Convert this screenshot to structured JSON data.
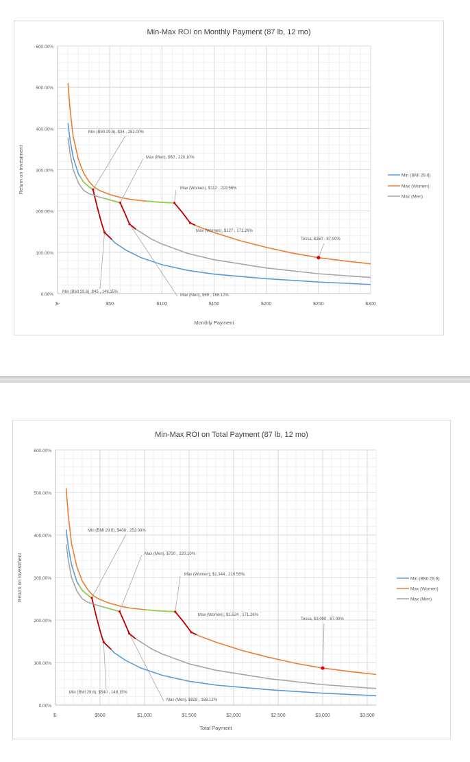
{
  "chart_data": [
    {
      "type": "line",
      "title": "Min-Max ROI on Monthly Payment (87 lb, 12 mo)",
      "xlabel": "Monthly Payment",
      "ylabel": "Return on Investment",
      "xlim": [
        0,
        300
      ],
      "ylim": [
        0,
        600
      ],
      "grid": true,
      "legend_position": "right",
      "x_ticks": [
        0,
        50,
        100,
        150,
        200,
        250,
        300
      ],
      "x_tick_labels": [
        "$-",
        "$50",
        "$100",
        "$150",
        "$200",
        "$250",
        "$300"
      ],
      "y_ticks": [
        0,
        100,
        200,
        300,
        400,
        500,
        600
      ],
      "y_tick_labels": [
        "0.00%",
        "100.00%",
        "200.00%",
        "300.00%",
        "400.00%",
        "500.00%",
        "600.00%"
      ],
      "series": [
        {
          "name": "Min (BMI 29.6)",
          "color": "#5b9bd5",
          "x": [
            10,
            12,
            15,
            20,
            25,
            30,
            34,
            38,
            42,
            45,
            50,
            55,
            65,
            80,
            100,
            125,
            150,
            200,
            250,
            300
          ],
          "y": [
            413,
            372,
            330,
            290,
            270,
            259,
            252,
            210,
            172,
            148.15,
            136,
            123,
            106,
            87,
            70,
            56,
            47,
            36,
            28,
            22
          ],
          "green_range": [
            22,
            34
          ],
          "red_range": [
            34,
            52
          ]
        },
        {
          "name": "Max (Women)",
          "color": "#ed7d31",
          "x": [
            10,
            12,
            15,
            20,
            25,
            30,
            35,
            40,
            50,
            60,
            70,
            85,
            100,
            112,
            120,
            127,
            135,
            150,
            175,
            200,
            225,
            250,
            275,
            300
          ],
          "y": [
            510,
            445,
            380,
            325,
            292,
            272,
            258,
            250,
            240,
            233,
            228,
            224,
            221,
            219.56,
            195,
            171.26,
            162,
            148,
            128,
            112,
            98,
            87,
            79,
            72
          ],
          "green_range": [
            85,
            112
          ],
          "red_range": [
            112,
            132
          ]
        },
        {
          "name": "Max (Men)",
          "color": "#a5a5a5",
          "x": [
            10,
            12,
            15,
            20,
            25,
            30,
            40,
            50,
            60,
            65,
            69,
            75,
            90,
            100,
            125,
            150,
            200,
            250,
            300
          ],
          "y": [
            378,
            340,
            300,
            268,
            250,
            242,
            234,
            227,
            220.1,
            192,
            168.12,
            156,
            132,
            120,
            97,
            82,
            62,
            48,
            39
          ],
          "green_range": [
            45,
            60
          ],
          "red_range": [
            60,
            75
          ]
        }
      ],
      "annotations": [
        {
          "text": "Min (BMI 29.6), $34 , 252.00%",
          "x": 34,
          "y": 252
        },
        {
          "text": "Max (Men), $60 , 220.10%",
          "x": 60,
          "y": 220.1
        },
        {
          "text": "Max (Women), $112 , 219.56%",
          "x": 112,
          "y": 219.56
        },
        {
          "text": "Max (Women), $127 , 171.26%",
          "x": 127,
          "y": 171.26
        },
        {
          "text": "Tessa, $250 , 87.00%",
          "x": 250,
          "y": 87
        },
        {
          "text": "Min (BMI 29.6), $45 , 148.15%",
          "x": 45,
          "y": 148.15
        },
        {
          "text": "Max (Men), $69 , 168.12%",
          "x": 69,
          "y": 168.12
        }
      ]
    },
    {
      "type": "line",
      "title": "Min-Max ROI on Total Payment (87 lb, 12 mo)",
      "xlabel": "Total Payment",
      "ylabel": "Return on Investment",
      "xlim": [
        0,
        3600
      ],
      "ylim": [
        0,
        600
      ],
      "grid": true,
      "legend_position": "right",
      "x_ticks": [
        0,
        500,
        1000,
        1500,
        2000,
        2500,
        3000,
        3500
      ],
      "x_tick_labels": [
        "$-",
        "$500",
        "$1,000",
        "$1,500",
        "$2,000",
        "$2,500",
        "$3,000",
        "$3,500"
      ],
      "y_ticks": [
        0,
        100,
        200,
        300,
        400,
        500,
        600
      ],
      "y_tick_labels": [
        "0.00%",
        "100.00%",
        "200.00%",
        "300.00%",
        "400.00%",
        "500.00%",
        "600.00%"
      ],
      "series": [
        {
          "name": "Min (BMI 29.6)",
          "color": "#5b9bd5",
          "x": [
            120,
            144,
            180,
            240,
            300,
            360,
            408,
            456,
            504,
            540,
            600,
            660,
            780,
            960,
            1200,
            1500,
            1800,
            2400,
            3000,
            3600
          ],
          "y": [
            413,
            372,
            330,
            290,
            270,
            259,
            252,
            210,
            172,
            148.15,
            136,
            123,
            106,
            87,
            70,
            56,
            47,
            36,
            28,
            22
          ],
          "green_range": [
            264,
            408
          ],
          "red_range": [
            408,
            624
          ]
        },
        {
          "name": "Max (Women)",
          "color": "#ed7d31",
          "x": [
            120,
            144,
            180,
            240,
            300,
            360,
            420,
            480,
            600,
            720,
            840,
            1020,
            1200,
            1344,
            1440,
            1524,
            1620,
            1800,
            2100,
            2400,
            2700,
            3000,
            3300,
            3600
          ],
          "y": [
            510,
            445,
            380,
            325,
            292,
            272,
            258,
            250,
            240,
            233,
            228,
            224,
            221,
            219.56,
            195,
            171.26,
            162,
            148,
            128,
            112,
            98,
            87,
            79,
            72
          ],
          "green_range": [
            1020,
            1344
          ],
          "red_range": [
            1344,
            1584
          ]
        },
        {
          "name": "Max (Men)",
          "color": "#a5a5a5",
          "x": [
            120,
            144,
            180,
            240,
            300,
            360,
            480,
            600,
            720,
            780,
            828,
            900,
            1080,
            1200,
            1500,
            1800,
            2400,
            3000,
            3600
          ],
          "y": [
            378,
            340,
            300,
            268,
            250,
            242,
            234,
            227,
            220.1,
            192,
            168.12,
            156,
            132,
            120,
            97,
            82,
            62,
            48,
            39
          ],
          "green_range": [
            540,
            720
          ],
          "red_range": [
            720,
            900
          ]
        }
      ],
      "annotations": [
        {
          "text": "Min (BMI 29.6), $408 , 252.00%",
          "x": 408,
          "y": 252
        },
        {
          "text": "Max (Men), $720 , 220.10%",
          "x": 720,
          "y": 220.1
        },
        {
          "text": "Max (Women), $1,344 , 219.56%",
          "x": 1344,
          "y": 219.56
        },
        {
          "text": "Max (Women), $1,524 , 171.26%",
          "x": 1524,
          "y": 171.26
        },
        {
          "text": "Tessa, $3,000 , 87.00%",
          "x": 3000,
          "y": 87
        },
        {
          "text": "Min (BMI 29.6), $540 , 148.15%",
          "x": 540,
          "y": 148.15
        },
        {
          "text": "Max (Men), $828 , 168.12%",
          "x": 828,
          "y": 168.12
        }
      ]
    }
  ]
}
